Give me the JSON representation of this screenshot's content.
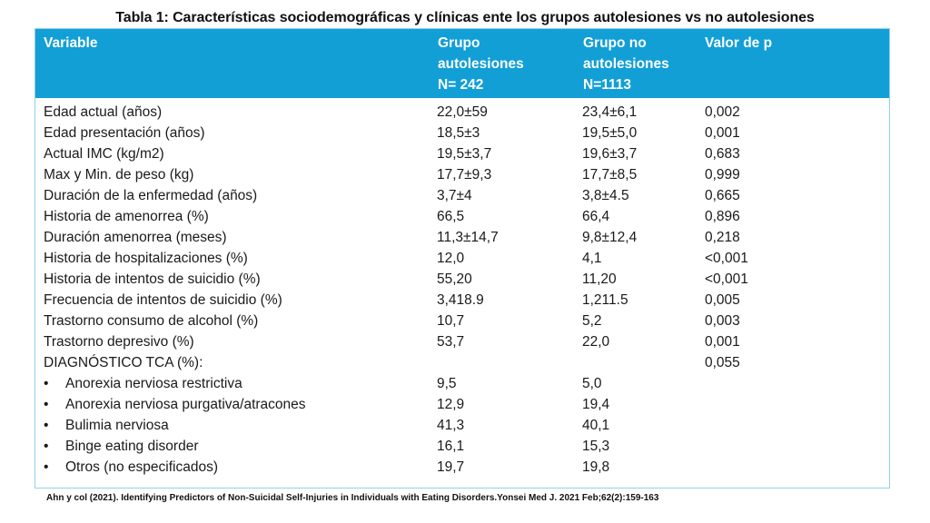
{
  "title": "Tabla 1: Características sociodemográficas y clínicas ente  los grupos autolesiones vs no autolesiones",
  "colors": {
    "header_bg": "#129fd6",
    "header_text": "#ffffff",
    "border": "#8fd0ee"
  },
  "header": {
    "variable": "Variable",
    "group1": [
      "Grupo",
      "autolesiones",
      "N= 242"
    ],
    "group2": [
      "Grupo no",
      "autolesiones",
      "N=1113"
    ],
    "p_value": "Valor de p"
  },
  "rows": [
    {
      "variable": "Edad actual (años)",
      "group1": "22,0±59",
      "group2": "23,4±6,1",
      "p": "0,002"
    },
    {
      "variable": "Edad presentación (años)",
      "group1": "18,5±3",
      "group2": "19,5±5,0",
      "p": "0,001"
    },
    {
      "variable": "Actual IMC (kg/m2)",
      "group1": "19,5±3,7",
      "group2": "19,6±3,7",
      "p": "0,683"
    },
    {
      "variable": "Max y Min. de peso (kg)",
      "group1": "17,7±9,3",
      "group2": "17,7±8,5",
      "p": "0,999"
    },
    {
      "variable": "Duración de la enfermedad (años)",
      "group1": "3,7±4",
      "group2": "3,8±4.5",
      "p": "0,665"
    },
    {
      "variable": "Historia de amenorrea (%)",
      "group1": "66,5",
      "group2": "66,4",
      "p": "0,896"
    },
    {
      "variable": "Duración amenorrea (meses)",
      "group1": "11,3±14,7",
      "group2": "9,8±12,4",
      "p": "0,218"
    },
    {
      "variable": "Historia de hospitalizaciones (%)",
      "group1": "12,0",
      "group2": "4,1",
      "p": "<0,001"
    },
    {
      "variable": "Historia de intentos de suicidio (%)",
      "group1": "55,20",
      "group2": "11,20",
      "p": "<0,001"
    },
    {
      "variable": "Frecuencia de intentos de suicidio (%)",
      "group1": "3,418.9",
      "group2": "1,211.5",
      "p": "0,005"
    },
    {
      "variable": "Trastorno consumo de alcohol (%)",
      "group1": "10,7",
      "group2": "5,2",
      "p": "0,003"
    },
    {
      "variable": "Trastorno depresivo (%)",
      "group1": "53,7",
      "group2": "22,0",
      "p": "0,001"
    },
    {
      "variable": "DIAGNÓSTICO TCA (%):",
      "group1": "",
      "group2": "",
      "p": "0,055"
    }
  ],
  "bullet_char": "•",
  "bullet_rows": [
    {
      "variable": "Anorexia nerviosa restrictiva",
      "group1": "9,5",
      "group2": "5,0",
      "p": ""
    },
    {
      "variable": "Anorexia nerviosa purgativa/atracones",
      "group1": "12,9",
      "group2": "19,4",
      "p": ""
    },
    {
      "variable": "Bulimia nerviosa",
      "group1": "41,3",
      "group2": "40,1",
      "p": ""
    },
    {
      "variable": "Binge eating disorder",
      "group1": "16,1",
      "group2": "15,3",
      "p": ""
    },
    {
      "variable": "Otros (no especificados)",
      "group1": "19,7",
      "group2": "19,8",
      "p": ""
    }
  ],
  "footer": "Ahn y col (2021). Identifying Predictors of Non-Suicidal Self-Injuries in Individuals with Eating Disorders.Yonsei Med J. 2021 Feb;62(2):159-163"
}
